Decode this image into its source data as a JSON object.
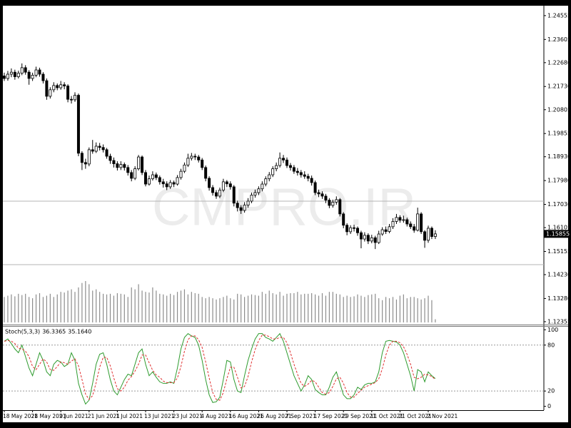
{
  "chart_data": [
    {
      "type": "candlestick",
      "watermark": "CMPRO.IR",
      "categories": [
        "18 May 2021",
        null,
        null,
        null,
        null,
        null,
        null,
        null,
        "28 May 2021",
        null,
        null,
        null,
        null,
        null,
        null,
        null,
        "9 Jun 2021",
        null,
        null,
        null,
        null,
        null,
        null,
        null,
        "21 Jun 2021",
        null,
        null,
        null,
        null,
        null,
        null,
        null,
        "1 Jul 2021",
        null,
        null,
        null,
        null,
        null,
        null,
        null,
        "13 Jul 2021",
        null,
        null,
        null,
        null,
        null,
        null,
        null,
        "23 Jul 2021",
        null,
        null,
        null,
        null,
        null,
        null,
        null,
        "4 Aug 2021",
        null,
        null,
        null,
        null,
        null,
        null,
        null,
        "16 Aug 2021",
        null,
        null,
        null,
        null,
        null,
        null,
        null,
        "26 Aug 2021",
        null,
        null,
        null,
        null,
        null,
        null,
        null,
        "7 Sep 2021",
        null,
        null,
        null,
        null,
        null,
        null,
        null,
        "17 Sep 2021",
        null,
        null,
        null,
        null,
        null,
        null,
        null,
        "29 Sep 2021",
        null,
        null,
        null,
        null,
        null,
        null,
        null,
        "11 Oct 2021",
        null,
        null,
        null,
        null,
        null,
        null,
        null,
        "21 Oct 2021",
        null,
        null,
        null,
        null,
        null,
        null,
        null,
        "2 Nov 2021",
        null,
        null
      ],
      "open": [
        1.2215,
        1.2205,
        1.2222,
        1.223,
        1.2212,
        1.2226,
        1.2248,
        1.223,
        1.2205,
        1.2218,
        1.2239,
        1.2222,
        1.2196,
        1.2134,
        1.216,
        1.2177,
        1.2168,
        1.218,
        1.2175,
        1.2122,
        1.212,
        1.2138,
        1.1907,
        1.187,
        1.1864,
        1.1921,
        1.1915,
        1.1935,
        1.193,
        1.1921,
        1.1895,
        1.1878,
        1.1865,
        1.185,
        1.1862,
        1.185,
        1.183,
        1.1807,
        1.1845,
        1.1892,
        1.183,
        1.1784,
        1.1805,
        1.1821,
        1.181,
        1.1793,
        1.1785,
        1.1773,
        1.179,
        1.1784,
        1.181,
        1.1835,
        1.186,
        1.1887,
        1.1895,
        1.1892,
        1.188,
        1.185,
        1.1807,
        1.177,
        1.175,
        1.1736,
        1.176,
        1.1793,
        1.1785,
        1.1773,
        1.1708,
        1.169,
        1.1679,
        1.17,
        1.1716,
        1.174,
        1.175,
        1.1765,
        1.1784,
        1.1805,
        1.1821,
        1.1845,
        1.1858,
        1.1887,
        1.188,
        1.1858,
        1.185,
        1.1835,
        1.183,
        1.1821,
        1.1815,
        1.1807,
        1.179,
        1.175,
        1.1745,
        1.1736,
        1.172,
        1.1699,
        1.1712,
        1.1722,
        1.1665,
        1.162,
        1.1594,
        1.161,
        1.1608,
        1.159,
        1.1565,
        1.158,
        1.1557,
        1.157,
        1.1551,
        1.1585,
        1.1602,
        1.1595,
        1.1614,
        1.1635,
        1.1651,
        1.164,
        1.1642,
        1.1625,
        1.1614,
        1.16,
        1.1665,
        1.1594,
        1.156,
        1.1608,
        1.1575
      ],
      "high": [
        1.2228,
        1.2235,
        1.2245,
        1.224,
        1.2236,
        1.2265,
        1.2258,
        1.2238,
        1.2228,
        1.2252,
        1.2248,
        1.223,
        1.2205,
        1.217,
        1.219,
        1.2185,
        1.2195,
        1.219,
        1.2182,
        1.2135,
        1.215,
        1.2145,
        1.1915,
        1.1885,
        1.193,
        1.196,
        1.195,
        1.1948,
        1.1942,
        1.1928,
        1.1905,
        1.189,
        1.1875,
        1.1875,
        1.187,
        1.186,
        1.184,
        1.1855,
        1.19,
        1.1898,
        1.184,
        1.1818,
        1.1835,
        1.183,
        1.1818,
        1.1805,
        1.1795,
        1.18,
        1.1798,
        1.182,
        1.1845,
        1.187,
        1.1905,
        1.1908,
        1.1905,
        1.19,
        1.1888,
        1.1858,
        1.1815,
        1.178,
        1.176,
        1.177,
        1.1805,
        1.18,
        1.1795,
        1.178,
        1.1718,
        1.17,
        1.1712,
        1.1728,
        1.175,
        1.1762,
        1.1775,
        1.1795,
        1.1815,
        1.1832,
        1.1855,
        1.187,
        1.191,
        1.19,
        1.189,
        1.1868,
        1.186,
        1.1848,
        1.184,
        1.1835,
        1.1825,
        1.1818,
        1.1798,
        1.1762,
        1.1755,
        1.1745,
        1.1728,
        1.1722,
        1.1735,
        1.1728,
        1.1672,
        1.1628,
        1.162,
        1.1622,
        1.1615,
        1.1598,
        1.1592,
        1.1588,
        1.1582,
        1.1578,
        1.1598,
        1.1612,
        1.1615,
        1.1625,
        1.1648,
        1.1665,
        1.166,
        1.1658,
        1.165,
        1.1635,
        1.1625,
        1.169,
        1.1672,
        1.16,
        1.1618,
        1.1615,
        1.16
      ],
      "low": [
        1.2195,
        1.2196,
        1.221,
        1.22,
        1.2205,
        1.2218,
        1.222,
        1.218,
        1.2195,
        1.221,
        1.2212,
        1.2185,
        1.212,
        1.2125,
        1.215,
        1.2158,
        1.216,
        1.2162,
        1.211,
        1.2105,
        1.2112,
        1.1895,
        1.184,
        1.1845,
        1.1855,
        1.1905,
        1.1908,
        1.1918,
        1.191,
        1.1885,
        1.1865,
        1.185,
        1.1838,
        1.184,
        1.1838,
        1.1818,
        1.1795,
        1.18,
        1.1838,
        1.182,
        1.1775,
        1.1778,
        1.1798,
        1.18,
        1.1782,
        1.177,
        1.176,
        1.1765,
        1.1772,
        1.1778,
        1.1802,
        1.1828,
        1.1852,
        1.1878,
        1.188,
        1.187,
        1.184,
        1.1795,
        1.1758,
        1.1738,
        1.1725,
        1.1728,
        1.1752,
        1.1772,
        1.1762,
        1.1695,
        1.1675,
        1.1665,
        1.167,
        1.169,
        1.1708,
        1.173,
        1.174,
        1.1755,
        1.1775,
        1.1795,
        1.1812,
        1.1835,
        1.185,
        1.1868,
        1.1848,
        1.1838,
        1.1825,
        1.1818,
        1.181,
        1.1805,
        1.1795,
        1.1778,
        1.174,
        1.1732,
        1.1725,
        1.1708,
        1.1688,
        1.169,
        1.1702,
        1.1655,
        1.1608,
        1.158,
        1.1585,
        1.1595,
        1.1578,
        1.1528,
        1.1555,
        1.1545,
        1.1548,
        1.1525,
        1.1545,
        1.1578,
        1.1585,
        1.1588,
        1.1605,
        1.1625,
        1.163,
        1.163,
        1.1615,
        1.1605,
        1.159,
        1.1595,
        1.1585,
        1.153,
        1.155,
        1.1565,
        1.1565
      ],
      "close": [
        1.2205,
        1.2222,
        1.223,
        1.2212,
        1.2226,
        1.2248,
        1.223,
        1.2205,
        1.2218,
        1.2239,
        1.2222,
        1.2196,
        1.2134,
        1.216,
        1.2177,
        1.2168,
        1.218,
        1.2175,
        1.2122,
        1.212,
        1.2138,
        1.1907,
        1.187,
        1.1864,
        1.1921,
        1.1915,
        1.1935,
        1.193,
        1.1921,
        1.1895,
        1.1878,
        1.1865,
        1.185,
        1.1862,
        1.185,
        1.183,
        1.1807,
        1.1845,
        1.1892,
        1.183,
        1.1784,
        1.1805,
        1.1821,
        1.181,
        1.1793,
        1.1785,
        1.1773,
        1.179,
        1.1784,
        1.181,
        1.1835,
        1.186,
        1.1887,
        1.1895,
        1.1892,
        1.188,
        1.185,
        1.1807,
        1.177,
        1.175,
        1.1736,
        1.176,
        1.1793,
        1.1785,
        1.1773,
        1.1708,
        1.169,
        1.1679,
        1.17,
        1.1716,
        1.174,
        1.175,
        1.1765,
        1.1784,
        1.1805,
        1.1821,
        1.1845,
        1.1858,
        1.1887,
        1.188,
        1.1858,
        1.185,
        1.1835,
        1.183,
        1.1821,
        1.1815,
        1.1807,
        1.179,
        1.175,
        1.1745,
        1.1736,
        1.172,
        1.1699,
        1.1712,
        1.1722,
        1.1665,
        1.162,
        1.1594,
        1.161,
        1.1608,
        1.159,
        1.1565,
        1.158,
        1.1557,
        1.157,
        1.1551,
        1.1585,
        1.1602,
        1.1595,
        1.1614,
        1.1635,
        1.1651,
        1.164,
        1.1642,
        1.1625,
        1.1614,
        1.16,
        1.1665,
        1.1594,
        1.156,
        1.1608,
        1.1575,
        1.15855
      ],
      "volume": [
        40,
        42,
        44,
        41,
        45,
        43,
        45,
        40,
        38,
        44,
        46,
        40,
        42,
        45,
        40,
        44,
        48,
        47,
        50,
        52,
        48,
        55,
        62,
        65,
        60,
        50,
        52,
        48,
        45,
        44,
        45,
        42,
        46,
        45,
        44,
        40,
        55,
        52,
        60,
        50,
        48,
        47,
        55,
        50,
        45,
        44,
        42,
        45,
        43,
        48,
        50,
        52,
        44,
        48,
        46,
        45,
        40,
        38,
        40,
        38,
        36,
        38,
        40,
        42,
        38,
        36,
        45,
        44,
        40,
        42,
        44,
        43,
        42,
        48,
        45,
        50,
        46,
        44,
        48,
        42,
        45,
        46,
        46,
        48,
        44,
        45,
        45,
        46,
        44,
        42,
        46,
        42,
        48,
        48,
        45,
        44,
        40,
        42,
        40,
        41,
        44,
        42,
        40,
        43,
        44,
        45,
        38,
        35,
        40,
        38,
        40,
        36,
        42,
        44,
        38,
        40,
        40,
        38,
        36,
        38,
        42,
        35,
        5
      ],
      "ylim": [
        1.1224,
        1.2495
      ],
      "yticks": [
        1.24555,
        1.23605,
        {
          "value": 1.2268,
          "label": "1.22680"
        },
        {
          "value": 1.2173,
          "label": "1.21730"
        },
        1.20805,
        1.19855,
        {
          "value": 1.1893,
          "label": "1.18930"
        },
        {
          "value": 1.1798,
          "label": "1.17980"
        },
        {
          "value": 1.1703,
          "label": "1.17030"
        },
        1.16105,
        1.15155,
        {
          "value": 1.1423,
          "label": "1.14230"
        },
        {
          "value": 1.1328,
          "label": "1.13280"
        },
        1.12355
      ],
      "hlines": [
        1.1716,
        1.1463
      ],
      "up_color": "#ffffff",
      "down_color": "#000000",
      "volume_color": "#8c8c8c"
    },
    {
      "type": "line",
      "title": "Stoch(5,3,3)",
      "ylim": [
        -5,
        104
      ],
      "yticks": [
        100,
        80,
        20,
        0
      ],
      "levels": [
        80,
        20
      ],
      "series": [
        {
          "color": "#2e9b2e",
          "line_style": "solid",
          "values": [
            85,
            88,
            82,
            75,
            70,
            80,
            65,
            50,
            40,
            55,
            70,
            60,
            45,
            40,
            55,
            60,
            58,
            52,
            55,
            70,
            60,
            30,
            15,
            3,
            8,
            30,
            55,
            68,
            70,
            55,
            35,
            20,
            15,
            25,
            35,
            42,
            40,
            55,
            70,
            75,
            55,
            40,
            45,
            38,
            32,
            30,
            30,
            32,
            30,
            50,
            75,
            90,
            95,
            92,
            90,
            80,
            60,
            35,
            15,
            5,
            6,
            12,
            35,
            60,
            58,
            35,
            20,
            18,
            40,
            60,
            75,
            88,
            95,
            95,
            90,
            88,
            85,
            90,
            95,
            85,
            70,
            55,
            40,
            30,
            20,
            28,
            40,
            35,
            22,
            18,
            15,
            15,
            25,
            38,
            45,
            30,
            15,
            10,
            10,
            15,
            25,
            22,
            28,
            30,
            30,
            32,
            45,
            70,
            85,
            86,
            85,
            84,
            80,
            70,
            55,
            40,
            20,
            48,
            45,
            32,
            45,
            40,
            36.3365
          ]
        },
        {
          "color": "#e03030",
          "line_style": "dashed",
          "values": [
            85,
            86,
            85,
            82,
            76,
            75,
            72,
            65,
            52,
            48,
            55,
            62,
            58,
            48,
            47,
            52,
            58,
            57,
            55,
            59,
            62,
            53,
            35,
            16,
            9,
            14,
            31,
            51,
            64,
            64,
            53,
            37,
            23,
            20,
            25,
            34,
            39,
            46,
            55,
            67,
            67,
            57,
            47,
            41,
            38,
            33,
            31,
            31,
            31,
            37,
            52,
            72,
            87,
            92,
            92,
            87,
            77,
            58,
            37,
            18,
            9,
            8,
            18,
            36,
            51,
            51,
            38,
            24,
            26,
            39,
            58,
            74,
            86,
            93,
            93,
            91,
            88,
            88,
            90,
            90,
            83,
            70,
            55,
            42,
            30,
            26,
            29,
            34,
            32,
            25,
            18,
            16,
            18,
            26,
            36,
            38,
            30,
            18,
            12,
            12,
            17,
            21,
            25,
            27,
            29,
            31,
            36,
            49,
            67,
            80,
            85,
            85,
            83,
            78,
            68,
            55,
            38,
            36,
            38,
            42,
            41,
            39,
            35.164
          ],
          "value_labels": [
            null,
            null,
            null,
            null,
            null,
            null,
            null,
            null,
            null,
            null,
            null,
            null,
            null,
            null,
            null,
            null,
            null,
            null,
            null,
            null,
            null,
            null,
            null,
            null,
            null,
            null,
            null,
            null,
            null,
            null,
            null,
            null,
            null,
            null,
            null,
            null,
            null,
            null,
            null,
            null,
            null,
            null,
            null,
            null,
            null,
            null,
            null,
            null,
            null,
            null,
            null,
            null,
            null,
            null,
            null,
            null,
            null,
            null,
            null,
            null,
            null,
            null,
            null,
            null,
            null,
            null,
            null,
            null,
            null,
            null,
            null,
            null,
            null,
            null,
            null,
            null,
            null,
            null,
            null,
            null,
            null,
            null,
            null,
            null,
            null,
            null,
            null,
            null,
            null,
            null,
            null,
            null,
            null,
            null,
            null,
            null,
            null,
            null,
            null,
            null,
            null,
            null,
            null,
            null,
            null,
            null,
            null,
            null,
            null,
            null,
            null,
            null,
            null,
            null,
            null,
            null,
            null,
            null,
            null,
            null,
            null,
            null,
            "35.1640"
          ]
        }
      ]
    }
  ]
}
